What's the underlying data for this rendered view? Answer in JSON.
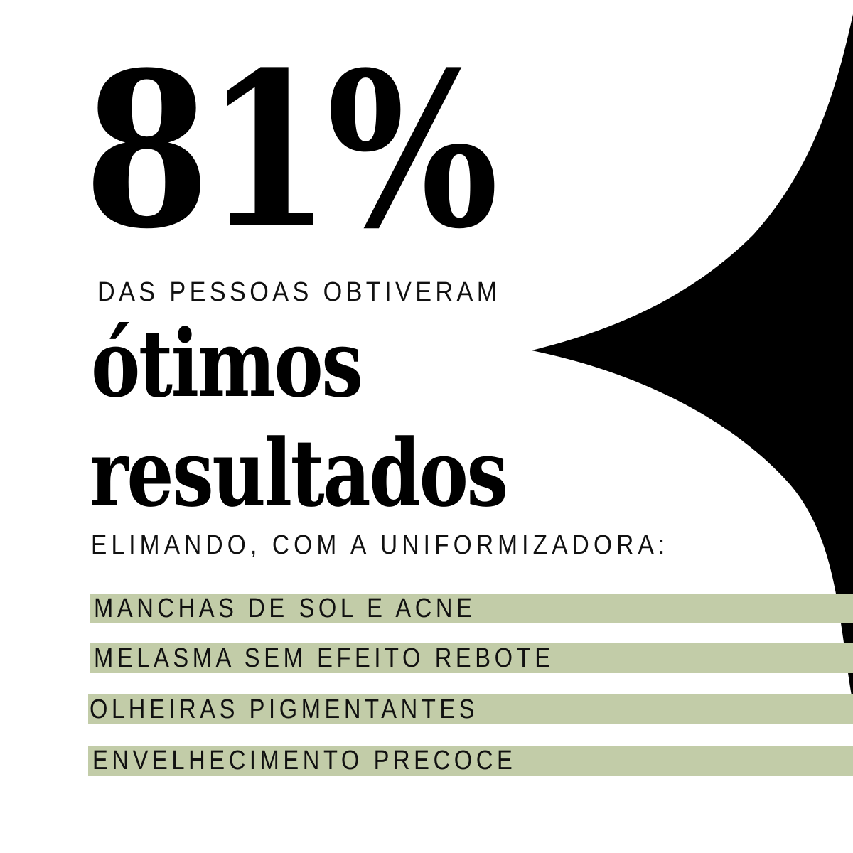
{
  "headline": {
    "percent": "81%",
    "line1": "DAS PESSOAS OBTIVERAM",
    "emphasis1": "ótimos",
    "emphasis2": "resultados",
    "line2": "ELIMANDO, COM A UNIFORMIZADORA:"
  },
  "benefits": [
    {
      "label": "MANCHAS DE SOL E ACNE"
    },
    {
      "label": "MELASMA SEM EFEITO REBOTE"
    },
    {
      "label": "OLHEIRAS PIGMENTANTES"
    },
    {
      "label": "ENVELHECIMENTO PRECOCE"
    }
  ],
  "colors": {
    "accent_bar": "#c2cca8",
    "shape": "#000000",
    "background": "#ffffff"
  }
}
